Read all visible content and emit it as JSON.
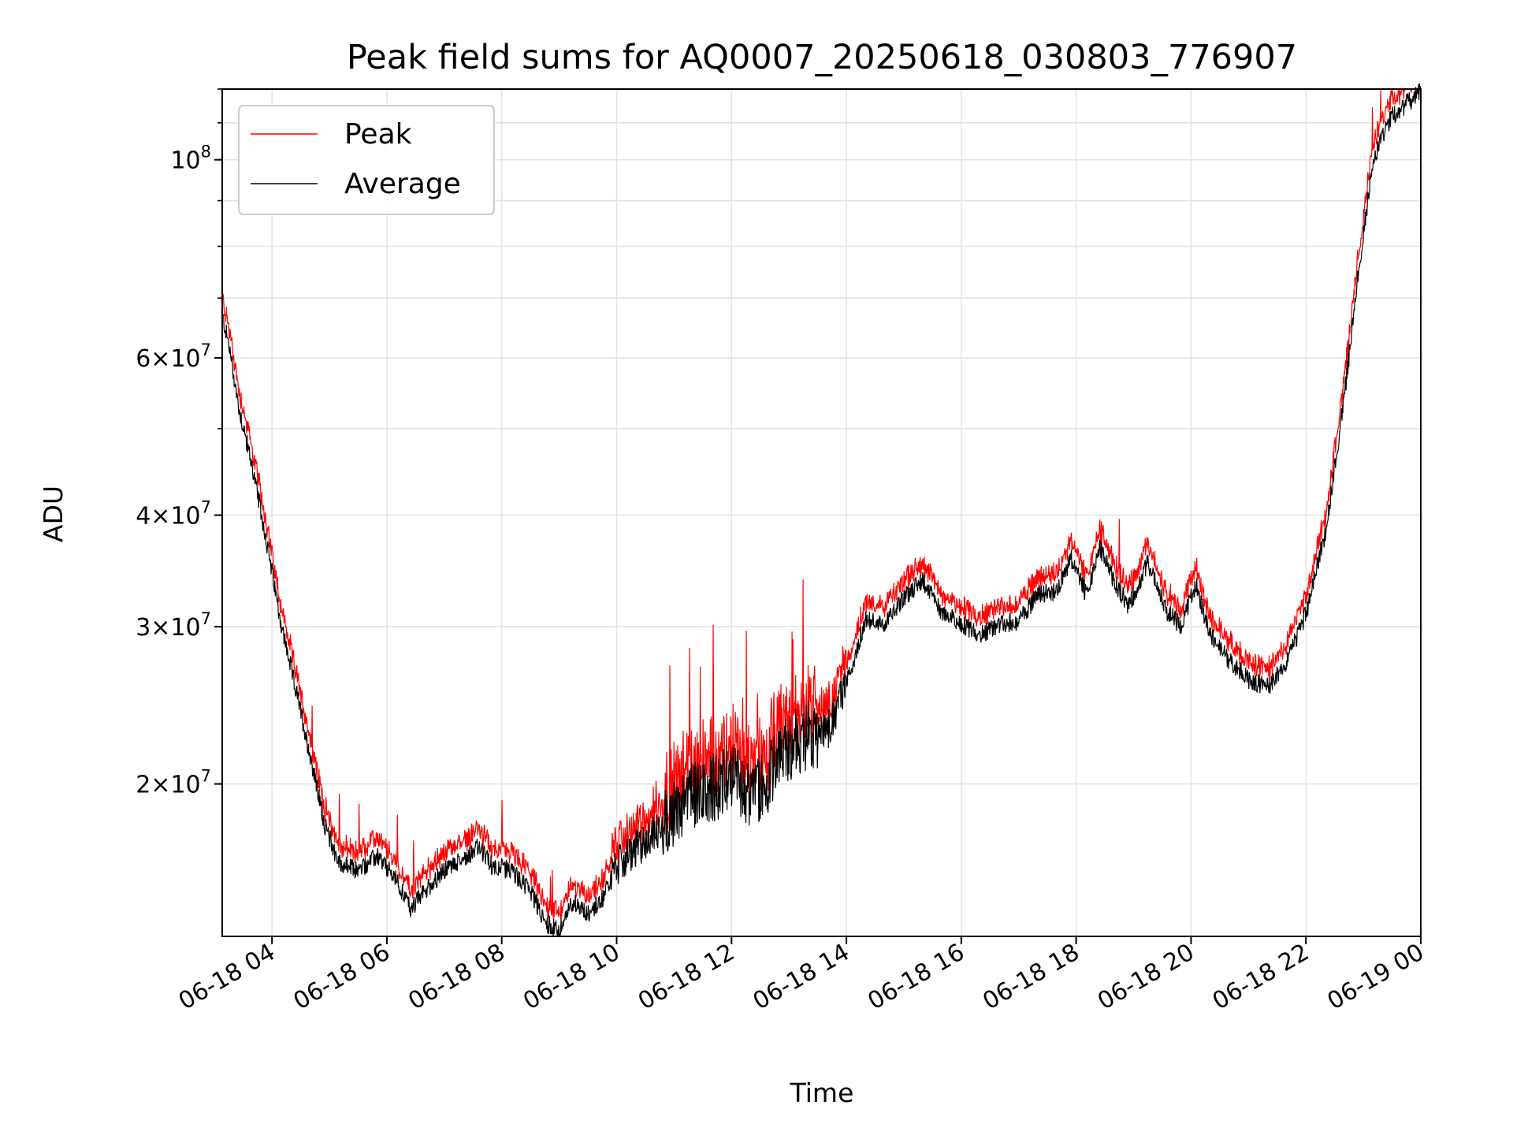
{
  "chart_data": {
    "type": "line",
    "title": "Peak field sums for AQ0007_20250618_030803_776907",
    "xlabel": "Time",
    "ylabel": "ADU",
    "y_scale": "log",
    "xlim": [
      "06-18 03:08",
      "06-19 00:00"
    ],
    "ylim": [
      13500000,
      120000000
    ],
    "grid": true,
    "legend_position": "top-left",
    "x_tick_labels": [
      "06-18 04",
      "06-18 06",
      "06-18 08",
      "06-18 10",
      "06-18 12",
      "06-18 14",
      "06-18 16",
      "06-18 18",
      "06-18 20",
      "06-18 22",
      "06-19 00"
    ],
    "x_tick_hours": [
      4,
      6,
      8,
      10,
      12,
      14,
      16,
      18,
      20,
      22,
      24
    ],
    "y_ticks": [
      {
        "value": 20000000,
        "base": "2",
        "mant": "10",
        "exp": "7"
      },
      {
        "value": 30000000,
        "base": "3",
        "mant": "10",
        "exp": "7"
      },
      {
        "value": 40000000,
        "base": "4",
        "mant": "10",
        "exp": "7"
      },
      {
        "value": 60000000,
        "base": "6",
        "mant": "10",
        "exp": "7"
      },
      {
        "value": 100000000,
        "base": "",
        "mant": "10",
        "exp": "8"
      }
    ],
    "series": [
      {
        "name": "Peak",
        "color": "#ff0000"
      },
      {
        "name": "Average",
        "color": "#000000"
      }
    ],
    "average_points": [
      [
        "06-18 03:08",
        67000000
      ],
      [
        "06-18 03:15",
        62000000
      ],
      [
        "06-18 03:25",
        53000000
      ],
      [
        "06-18 03:40",
        45000000
      ],
      [
        "06-18 03:55",
        37000000
      ],
      [
        "06-18 04:10",
        30000000
      ],
      [
        "06-18 04:25",
        25500000
      ],
      [
        "06-18 04:40",
        21500000
      ],
      [
        "06-18 04:55",
        18000000
      ],
      [
        "06-18 05:10",
        16300000
      ],
      [
        "06-18 05:30",
        16000000
      ],
      [
        "06-18 05:50",
        16600000
      ],
      [
        "06-18 06:10",
        15600000
      ],
      [
        "06-18 06:25",
        14500000
      ],
      [
        "06-18 06:40",
        15200000
      ],
      [
        "06-18 07:00",
        16000000
      ],
      [
        "06-18 07:20",
        16500000
      ],
      [
        "06-18 07:35",
        17000000
      ],
      [
        "06-18 07:50",
        16200000
      ],
      [
        "06-18 08:10",
        16000000
      ],
      [
        "06-18 08:30",
        15200000
      ],
      [
        "06-18 08:45",
        14000000
      ],
      [
        "06-18 09:00",
        13700000
      ],
      [
        "06-18 09:15",
        14800000
      ],
      [
        "06-18 09:30",
        14300000
      ],
      [
        "06-18 09:45",
        14900000
      ],
      [
        "06-18 10:00",
        16200000
      ],
      [
        "06-18 10:20",
        16900000
      ],
      [
        "06-18 10:40",
        17600000
      ],
      [
        "06-18 11:00",
        18600000
      ],
      [
        "06-18 11:20",
        19500000
      ],
      [
        "06-18 11:40",
        19800000
      ],
      [
        "06-18 12:00",
        20600000
      ],
      [
        "06-18 12:20",
        19300000
      ],
      [
        "06-18 12:40",
        20500000
      ],
      [
        "06-18 13:00",
        22000000
      ],
      [
        "06-18 13:20",
        22800000
      ],
      [
        "06-18 13:40",
        22900000
      ],
      [
        "06-18 14:00",
        25800000
      ],
      [
        "06-18 14:20",
        30600000
      ],
      [
        "06-18 14:40",
        30100000
      ],
      [
        "06-18 15:00",
        32400000
      ],
      [
        "06-18 15:20",
        33800000
      ],
      [
        "06-18 15:40",
        31100000
      ],
      [
        "06-18 16:00",
        30200000
      ],
      [
        "06-18 16:20",
        29400000
      ],
      [
        "06-18 16:40",
        30200000
      ],
      [
        "06-18 17:00",
        30400000
      ],
      [
        "06-18 17:20",
        32600000
      ],
      [
        "06-18 17:40",
        32900000
      ],
      [
        "06-18 17:55",
        35800000
      ],
      [
        "06-18 18:10",
        32600000
      ],
      [
        "06-18 18:25",
        36800000
      ],
      [
        "06-18 18:40",
        33600000
      ],
      [
        "06-18 18:55",
        31600000
      ],
      [
        "06-18 19:15",
        35400000
      ],
      [
        "06-18 19:35",
        31200000
      ],
      [
        "06-18 19:50",
        30000000
      ],
      [
        "06-18 20:05",
        33600000
      ],
      [
        "06-18 20:20",
        29300000
      ],
      [
        "06-18 20:40",
        27500000
      ],
      [
        "06-18 21:00",
        26200000
      ],
      [
        "06-18 21:20",
        25700000
      ],
      [
        "06-18 21:40",
        27500000
      ],
      [
        "06-18 22:00",
        31000000
      ],
      [
        "06-18 22:20",
        38000000
      ],
      [
        "06-18 22:40",
        54000000
      ],
      [
        "06-18 22:55",
        75000000
      ],
      [
        "06-18 23:10",
        100000000
      ],
      [
        "06-18 23:30",
        112000000
      ],
      [
        "06-18 23:59",
        119000000
      ]
    ]
  }
}
